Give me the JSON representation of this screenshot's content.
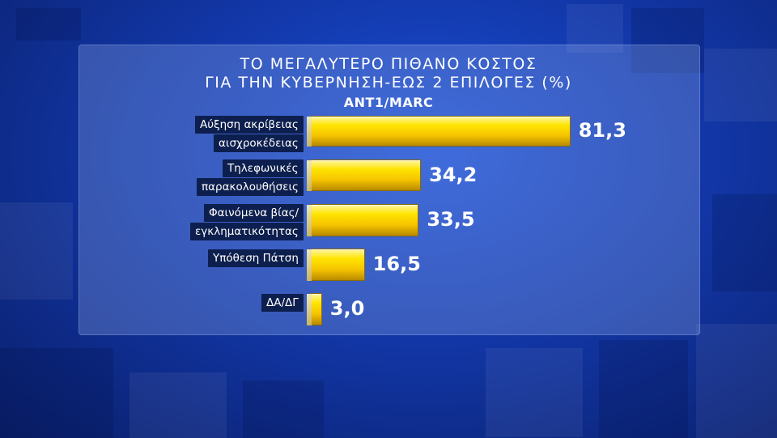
{
  "chart_data": {
    "type": "bar",
    "orientation": "horizontal",
    "title": "ΤΟ ΜΕΓΑΛΥΤΕΡΟ ΠΙΘΑΝΟ ΚΟΣΤΟΣ",
    "subtitle": "ΓΙΑ ΤΗΝ ΚΥΒΕΡΝΗΣΗ-ΕΩΣ 2 ΕΠΙΛΟΓΕΣ (%)",
    "source": "ANT1/MARC",
    "xlim": [
      0,
      100
    ],
    "categories": [
      [
        "Αύξηση ακρίβειας",
        "αισχροκέδειας"
      ],
      [
        "Τηλεφωνικές",
        "παρακολουθήσεις"
      ],
      [
        "Φαινόμενα βίας/",
        "εγκληματικότητας"
      ],
      [
        "Υπόθεση Πάτση"
      ],
      [
        "ΔΑ/ΔΓ"
      ]
    ],
    "values": [
      81.3,
      34.2,
      33.5,
      16.5,
      3.0
    ],
    "value_labels": [
      "81,3",
      "34,2",
      "33,5",
      "16,5",
      "3,0"
    ],
    "bar_color": "#f5c400",
    "label_bg": "#0d1f4e"
  }
}
